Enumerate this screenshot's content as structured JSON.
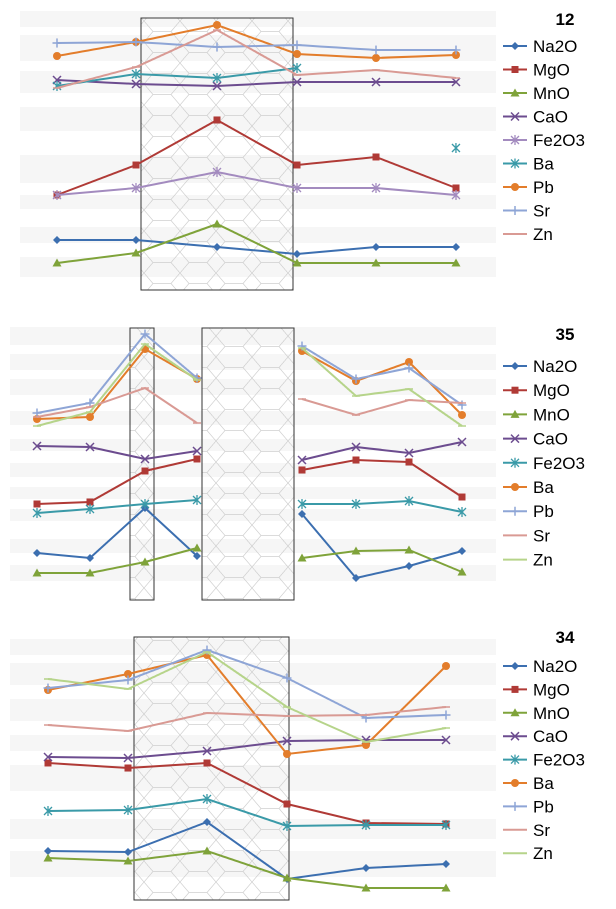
{
  "chart_data": [
    {
      "type": "line",
      "title": "12",
      "x": [
        1,
        2,
        3,
        4,
        5,
        6
      ],
      "series": [
        {
          "name": "Na2O",
          "color": "#3c6fb0",
          "marker": "diamond",
          "values": [
            240,
            240,
            247,
            254,
            247,
            247
          ]
        },
        {
          "name": "MgO",
          "color": "#b03a36",
          "marker": "square",
          "values": [
            195,
            165,
            120,
            165,
            157,
            188
          ]
        },
        {
          "name": "MnO",
          "color": "#7fa33a",
          "marker": "triangle",
          "values": [
            263,
            253,
            224,
            263,
            263,
            263
          ]
        },
        {
          "name": "CaO",
          "color": "#6c4c8f",
          "marker": "x",
          "values": [
            80,
            84,
            86,
            82,
            82,
            82
          ]
        },
        {
          "name": "Fe2O3",
          "color": "#a38bbf",
          "marker": "star",
          "values": [
            195,
            188,
            172,
            188,
            188,
            195
          ]
        },
        {
          "name": "Ba",
          "color": "#3a9aa8",
          "marker": "asterisk",
          "values": [
            86,
            74,
            78,
            68,
            null,
            null
          ]
        },
        {
          "name": "Pb",
          "color": "#e37d2b",
          "marker": "circle",
          "values": [
            56,
            42,
            25,
            54,
            58,
            55
          ]
        },
        {
          "name": "Sr",
          "color": "#8ea5d6",
          "marker": "plus",
          "values": [
            43,
            42,
            47,
            45,
            50,
            50
          ]
        },
        {
          "name": "Zn",
          "color": "#d99a94",
          "marker": "dash",
          "values": [
            88,
            67,
            30,
            75,
            70,
            78
          ]
        }
      ],
      "stray_point": {
        "series": "Ba",
        "x": 6.05,
        "y": 148
      }
    },
    {
      "type": "line",
      "title": "35",
      "x": [
        1,
        2,
        3,
        4,
        5,
        6,
        7,
        8
      ],
      "series": [
        {
          "name": "Na2O",
          "color": "#3c6fb0",
          "marker": "diamond",
          "values": [
            553,
            558,
            508,
            556,
            514,
            578,
            566,
            551
          ]
        },
        {
          "name": "MgO",
          "color": "#b03a36",
          "marker": "square",
          "values": [
            504,
            502,
            471,
            459,
            470,
            460,
            462,
            497
          ]
        },
        {
          "name": "MnO",
          "color": "#7fa33a",
          "marker": "triangle",
          "values": [
            573,
            573,
            562,
            548,
            558,
            551,
            550,
            572
          ]
        },
        {
          "name": "CaO",
          "color": "#6c4c8f",
          "marker": "x",
          "values": [
            446,
            447,
            459,
            451,
            460,
            447,
            453,
            442
          ]
        },
        {
          "name": "Fe2O3",
          "color": "#3a9aa8",
          "marker": "asterisk",
          "values": [
            513,
            509,
            504,
            500,
            504,
            504,
            501,
            512
          ]
        },
        {
          "name": "Ba",
          "color": "#e37d2b",
          "marker": "circle",
          "values": [
            419,
            417,
            349,
            379,
            351,
            381,
            362,
            415
          ]
        },
        {
          "name": "Pb",
          "color": "#8ea5d6",
          "marker": "plus",
          "values": [
            413,
            403,
            334,
            378,
            346,
            379,
            368,
            405
          ]
        },
        {
          "name": "Sr",
          "color": "#d99a94",
          "marker": "dash",
          "values": [
            417,
            407,
            388,
            423,
            399,
            415,
            400,
            403
          ]
        },
        {
          "name": "Zn",
          "color": "#b6d48a",
          "marker": "dash",
          "values": [
            426,
            412,
            344,
            380,
            348,
            396,
            389,
            426
          ]
        }
      ]
    },
    {
      "type": "line",
      "title": "34",
      "x": [
        1,
        2,
        3,
        4,
        5,
        6
      ],
      "series": [
        {
          "name": "Na2O",
          "color": "#3c6fb0",
          "marker": "diamond",
          "values": [
            851,
            852,
            822,
            879,
            868,
            864
          ]
        },
        {
          "name": "MgO",
          "color": "#b03a36",
          "marker": "square",
          "values": [
            763,
            768,
            763,
            804,
            823,
            824
          ]
        },
        {
          "name": "MnO",
          "color": "#7fa33a",
          "marker": "triangle",
          "values": [
            858,
            861,
            851,
            878,
            888,
            888
          ]
        },
        {
          "name": "CaO",
          "color": "#6c4c8f",
          "marker": "x",
          "values": [
            757,
            758,
            751,
            741,
            740,
            740
          ]
        },
        {
          "name": "Fe2O3",
          "color": "#3a9aa8",
          "marker": "asterisk",
          "values": [
            811,
            810,
            799,
            826,
            825,
            825
          ]
        },
        {
          "name": "Ba",
          "color": "#e37d2b",
          "marker": "circle",
          "values": [
            690,
            674,
            655,
            754,
            745,
            666
          ]
        },
        {
          "name": "Pb",
          "color": "#8ea5d6",
          "marker": "plus",
          "values": [
            688,
            680,
            650,
            678,
            718,
            715
          ]
        },
        {
          "name": "Sr",
          "color": "#d99a94",
          "marker": "dash",
          "values": [
            725,
            731,
            713,
            716,
            715,
            707
          ]
        },
        {
          "name": "Zn",
          "color": "#b6d48a",
          "marker": "dash",
          "values": [
            679,
            689,
            652,
            707,
            742,
            728
          ]
        }
      ]
    }
  ]
}
